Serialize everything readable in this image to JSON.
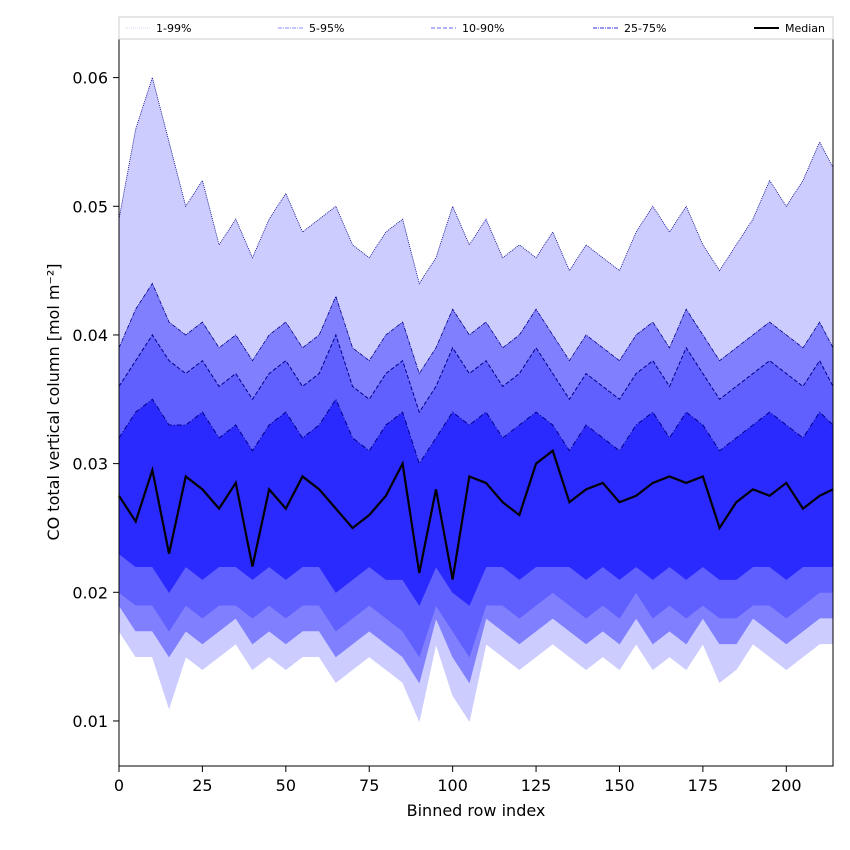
{
  "chart_data": {
    "type": "area",
    "title": "",
    "xlabel": "Binned row index",
    "ylabel": "CO total vertical column [mol m⁻²]",
    "xlim": [
      0,
      214
    ],
    "ylim": [
      0.0065,
      0.063
    ],
    "xticks": [
      0,
      25,
      50,
      75,
      100,
      125,
      150,
      175,
      200
    ],
    "yticks": [
      0.01,
      0.02,
      0.03,
      0.04,
      0.05,
      0.06
    ],
    "ytick_labels": [
      "0.01",
      "0.02",
      "0.03",
      "0.04",
      "0.05",
      "0.06"
    ],
    "grid": false,
    "legend": {
      "placement": "top",
      "entries": [
        {
          "label": "1-99%",
          "color": "#d9d9f0",
          "style": "dotted"
        },
        {
          "label": "5-95%",
          "color": "#8c8cff",
          "style": "dashdot"
        },
        {
          "label": "10-90%",
          "color": "#6666ff",
          "style": "dashed"
        },
        {
          "label": "25-75%",
          "color": "#3030e0",
          "style": "dashdot"
        },
        {
          "label": "Median",
          "color": "#000000",
          "style": "solid"
        }
      ]
    },
    "colors": {
      "band_1_99": "#ccccff",
      "band_5_95": "#8080ff",
      "band_10_90": "#6060ff",
      "band_25_75": "#2a2aff",
      "median": "#000000",
      "upper_edge": "#00008b"
    },
    "x": [
      0,
      5,
      10,
      15,
      20,
      25,
      30,
      35,
      40,
      45,
      50,
      55,
      60,
      65,
      70,
      75,
      80,
      85,
      90,
      95,
      100,
      105,
      110,
      115,
      120,
      125,
      130,
      135,
      140,
      145,
      150,
      155,
      160,
      165,
      170,
      175,
      180,
      185,
      190,
      195,
      200,
      205,
      210,
      214
    ],
    "series": [
      {
        "name": "1-99%",
        "lower": [
          0.017,
          0.015,
          0.015,
          0.011,
          0.015,
          0.014,
          0.015,
          0.016,
          0.014,
          0.015,
          0.014,
          0.015,
          0.015,
          0.013,
          0.014,
          0.015,
          0.014,
          0.013,
          0.01,
          0.016,
          0.012,
          0.01,
          0.016,
          0.015,
          0.014,
          0.015,
          0.016,
          0.015,
          0.014,
          0.015,
          0.014,
          0.016,
          0.014,
          0.015,
          0.014,
          0.016,
          0.013,
          0.014,
          0.016,
          0.015,
          0.014,
          0.015,
          0.016,
          0.016
        ],
        "upper": [
          0.049,
          0.056,
          0.06,
          0.055,
          0.05,
          0.052,
          0.047,
          0.049,
          0.046,
          0.049,
          0.051,
          0.048,
          0.049,
          0.05,
          0.047,
          0.046,
          0.048,
          0.049,
          0.044,
          0.046,
          0.05,
          0.047,
          0.049,
          0.046,
          0.047,
          0.046,
          0.048,
          0.045,
          0.047,
          0.046,
          0.045,
          0.048,
          0.05,
          0.048,
          0.05,
          0.047,
          0.045,
          0.047,
          0.049,
          0.052,
          0.05,
          0.052,
          0.055,
          0.053
        ]
      },
      {
        "name": "5-95%",
        "lower": [
          0.019,
          0.017,
          0.017,
          0.015,
          0.017,
          0.016,
          0.017,
          0.018,
          0.016,
          0.017,
          0.016,
          0.017,
          0.017,
          0.015,
          0.016,
          0.017,
          0.016,
          0.015,
          0.013,
          0.018,
          0.015,
          0.013,
          0.018,
          0.017,
          0.016,
          0.017,
          0.018,
          0.017,
          0.016,
          0.017,
          0.016,
          0.018,
          0.016,
          0.017,
          0.016,
          0.018,
          0.016,
          0.016,
          0.018,
          0.017,
          0.016,
          0.017,
          0.018,
          0.018
        ],
        "upper": [
          0.039,
          0.042,
          0.044,
          0.041,
          0.04,
          0.041,
          0.039,
          0.04,
          0.038,
          0.04,
          0.041,
          0.039,
          0.04,
          0.043,
          0.039,
          0.038,
          0.04,
          0.041,
          0.037,
          0.039,
          0.042,
          0.04,
          0.041,
          0.039,
          0.04,
          0.042,
          0.04,
          0.038,
          0.04,
          0.039,
          0.038,
          0.04,
          0.041,
          0.039,
          0.042,
          0.04,
          0.038,
          0.039,
          0.04,
          0.041,
          0.04,
          0.039,
          0.041,
          0.039
        ]
      },
      {
        "name": "10-90%",
        "lower": [
          0.02,
          0.019,
          0.019,
          0.017,
          0.019,
          0.018,
          0.019,
          0.019,
          0.018,
          0.019,
          0.018,
          0.019,
          0.019,
          0.017,
          0.018,
          0.019,
          0.018,
          0.017,
          0.015,
          0.019,
          0.017,
          0.015,
          0.019,
          0.019,
          0.018,
          0.019,
          0.02,
          0.019,
          0.018,
          0.019,
          0.018,
          0.02,
          0.018,
          0.019,
          0.018,
          0.019,
          0.018,
          0.018,
          0.019,
          0.019,
          0.018,
          0.019,
          0.02,
          0.02
        ],
        "upper": [
          0.036,
          0.038,
          0.04,
          0.038,
          0.037,
          0.038,
          0.036,
          0.037,
          0.035,
          0.037,
          0.038,
          0.036,
          0.037,
          0.04,
          0.036,
          0.035,
          0.037,
          0.038,
          0.034,
          0.036,
          0.039,
          0.037,
          0.038,
          0.036,
          0.037,
          0.039,
          0.037,
          0.035,
          0.037,
          0.036,
          0.035,
          0.037,
          0.038,
          0.036,
          0.039,
          0.037,
          0.035,
          0.036,
          0.037,
          0.038,
          0.037,
          0.036,
          0.038,
          0.036
        ]
      },
      {
        "name": "25-75%",
        "lower": [
          0.023,
          0.022,
          0.022,
          0.02,
          0.022,
          0.021,
          0.022,
          0.022,
          0.021,
          0.022,
          0.021,
          0.022,
          0.022,
          0.02,
          0.021,
          0.022,
          0.021,
          0.021,
          0.019,
          0.022,
          0.02,
          0.019,
          0.022,
          0.022,
          0.021,
          0.022,
          0.022,
          0.022,
          0.021,
          0.022,
          0.021,
          0.022,
          0.021,
          0.022,
          0.021,
          0.022,
          0.021,
          0.021,
          0.022,
          0.022,
          0.021,
          0.022,
          0.022,
          0.022
        ],
        "upper": [
          0.032,
          0.034,
          0.035,
          0.033,
          0.033,
          0.034,
          0.032,
          0.033,
          0.031,
          0.033,
          0.034,
          0.032,
          0.033,
          0.035,
          0.032,
          0.031,
          0.033,
          0.034,
          0.03,
          0.032,
          0.034,
          0.033,
          0.034,
          0.032,
          0.033,
          0.034,
          0.033,
          0.031,
          0.033,
          0.032,
          0.031,
          0.033,
          0.034,
          0.032,
          0.034,
          0.033,
          0.031,
          0.032,
          0.033,
          0.034,
          0.033,
          0.032,
          0.034,
          0.033
        ]
      },
      {
        "name": "Median",
        "values": [
          0.0275,
          0.0255,
          0.0295,
          0.023,
          0.029,
          0.028,
          0.0265,
          0.0285,
          0.022,
          0.028,
          0.0265,
          0.029,
          0.028,
          0.0265,
          0.025,
          0.026,
          0.0275,
          0.03,
          0.0215,
          0.028,
          0.021,
          0.029,
          0.0285,
          0.027,
          0.026,
          0.03,
          0.031,
          0.027,
          0.028,
          0.0285,
          0.027,
          0.0275,
          0.0285,
          0.029,
          0.0285,
          0.029,
          0.025,
          0.027,
          0.028,
          0.0275,
          0.0285,
          0.0265,
          0.0275,
          0.028
        ]
      }
    ]
  }
}
